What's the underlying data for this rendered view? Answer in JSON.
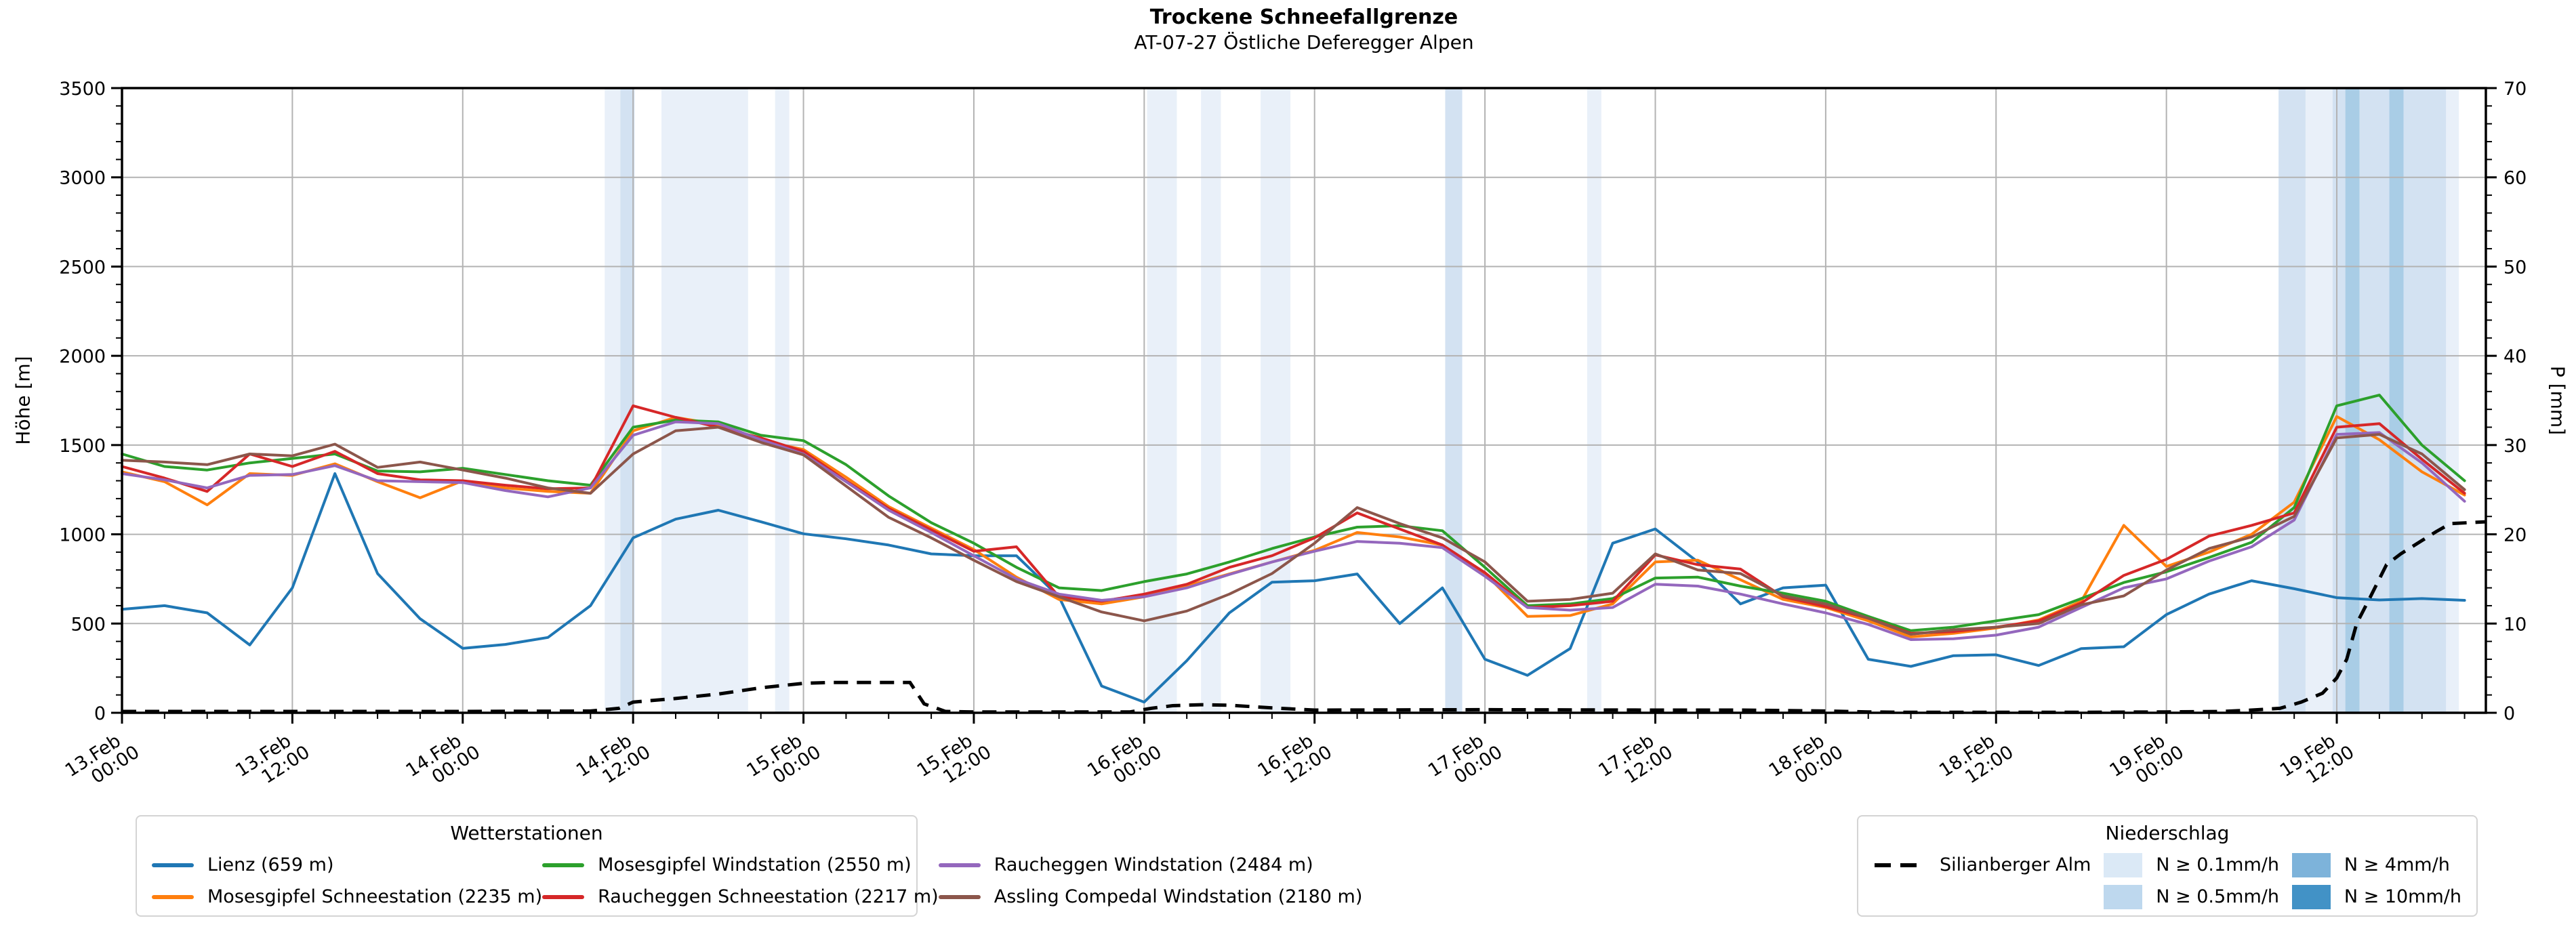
{
  "title": "Trockene Schneefallgrenze",
  "subtitle": "AT-07-27 Östliche Deferegger Alpen",
  "axes": {
    "y_left_label": "Höhe [m]",
    "y_right_label": "P [mm]",
    "y_left": {
      "min": 0,
      "max": 3500,
      "major": 500,
      "minor": 100,
      "ticks": [
        0,
        500,
        1000,
        1500,
        2000,
        2500,
        3000,
        3500
      ]
    },
    "y_right": {
      "min": 0,
      "max": 70,
      "major": 10,
      "minor": 2,
      "ticks": [
        0,
        10,
        20,
        30,
        40,
        50,
        60,
        70
      ]
    },
    "x_end_hours": 166.5,
    "x_major_hours": 12,
    "x_minor_hours": 3,
    "x_ticklabels": [
      {
        "t": 0,
        "day": "13.Feb",
        "time": "00:00"
      },
      {
        "t": 12,
        "day": "13.Feb",
        "time": "12:00"
      },
      {
        "t": 24,
        "day": "14.Feb",
        "time": "00:00"
      },
      {
        "t": 36,
        "day": "14.Feb",
        "time": "12:00"
      },
      {
        "t": 48,
        "day": "15.Feb",
        "time": "00:00"
      },
      {
        "t": 60,
        "day": "15.Feb",
        "time": "12:00"
      },
      {
        "t": 72,
        "day": "16.Feb",
        "time": "00:00"
      },
      {
        "t": 84,
        "day": "16.Feb",
        "time": "12:00"
      },
      {
        "t": 96,
        "day": "17.Feb",
        "time": "00:00"
      },
      {
        "t": 108,
        "day": "17.Feb",
        "time": "12:00"
      },
      {
        "t": 120,
        "day": "18.Feb",
        "time": "00:00"
      },
      {
        "t": 132,
        "day": "18.Feb",
        "time": "12:00"
      },
      {
        "t": 144,
        "day": "19.Feb",
        "time": "00:00"
      },
      {
        "t": 156,
        "day": "19.Feb",
        "time": "12:00"
      }
    ]
  },
  "colors": {
    "grid": "#b3b3b3",
    "axis": "#000000",
    "band_chart": {
      "0.1": "#e9f0f9",
      "0.5": "#d3e2f2",
      "4": "#a9cde6",
      "10": "#6fa8d2"
    },
    "band_legend": {
      "0.1": "#dbe9f6",
      "0.5": "#bed8ee",
      "4": "#7db3da",
      "10": "#4292c6"
    }
  },
  "legend_left": {
    "title": "Wetterstationen",
    "entries": [
      {
        "label": "Lienz (659 m)",
        "color": "#1f77b4"
      },
      {
        "label": "Mosesgipfel Schneestation (2235 m)",
        "color": "#ff7f0e"
      },
      {
        "label": "Mosesgipfel Windstation (2550 m)",
        "color": "#2ca02c"
      },
      {
        "label": "Raucheggen Schneestation (2217 m)",
        "color": "#d62728"
      },
      {
        "label": "Raucheggen Windstation (2484 m)",
        "color": "#9467bd"
      },
      {
        "label": "Assling Compedal Windstation (2180 m)",
        "color": "#8c564b"
      }
    ]
  },
  "legend_right": {
    "title": "Niederschlag",
    "dashed_entry": {
      "label": "Silianberger Alm",
      "color": "#000000"
    },
    "levels": [
      {
        "label": "N ≥ 0.1mm/h",
        "level": "0.1"
      },
      {
        "label": "N ≥ 0.5mm/h",
        "level": "0.5"
      },
      {
        "label": "N ≥ 4mm/h",
        "level": "4"
      },
      {
        "label": "N ≥ 10mm/h",
        "level": "10"
      }
    ]
  },
  "chart_data": {
    "type": "line",
    "title": "Trockene Schneefallgrenze",
    "subtitle": "AT-07-27 Östliche Deferegger Alpen",
    "ylabel": "Höhe [m]",
    "ylabel_right": "P [mm]",
    "ylim": [
      0,
      3500
    ],
    "ylim_right": [
      0,
      70
    ],
    "x_start": "13.Feb 00:00",
    "x_hours": [
      0,
      3,
      6,
      9,
      12,
      15,
      18,
      21,
      24,
      27,
      30,
      33,
      36,
      39,
      42,
      45,
      48,
      51,
      54,
      57,
      60,
      63,
      66,
      69,
      72,
      75,
      78,
      81,
      84,
      87,
      90,
      93,
      96,
      99,
      102,
      105,
      108,
      111,
      114,
      117,
      120,
      123,
      126,
      129,
      132,
      135,
      138,
      141,
      144,
      147,
      150,
      153,
      156,
      159,
      162,
      165
    ],
    "series": [
      {
        "name": "Lienz (659 m)",
        "key": "lienz",
        "color": "#1f77b4",
        "values": [
          580,
          600,
          560,
          380,
          700,
          1340,
          780,
          527,
          361,
          383,
          422,
          600,
          980,
          1085,
          1135,
          1070,
          1003,
          975,
          940,
          890,
          880,
          880,
          650,
          150,
          60,
          292,
          560,
          732,
          740,
          778,
          500,
          700,
          300,
          210,
          360,
          950,
          1030,
          845,
          610,
          700,
          715,
          300,
          260,
          320,
          325,
          265,
          360,
          370,
          550,
          665,
          740,
          695,
          645,
          632,
          640,
          630
        ]
      },
      {
        "name": "Mosesgipfel Schneestation (2235 m)",
        "key": "mosesgipfel_schnee",
        "color": "#ff7f0e",
        "values": [
          1350,
          1295,
          1165,
          1340,
          1330,
          1395,
          1295,
          1205,
          1300,
          1260,
          1240,
          1230,
          1580,
          1655,
          1615,
          1525,
          1475,
          1320,
          1155,
          1035,
          915,
          760,
          635,
          610,
          650,
          710,
          778,
          845,
          910,
          1010,
          985,
          940,
          780,
          540,
          545,
          610,
          845,
          855,
          745,
          635,
          590,
          515,
          425,
          445,
          475,
          520,
          625,
          1050,
          820,
          900,
          1000,
          1180,
          1660,
          1530,
          1350,
          1220
        ]
      },
      {
        "name": "Mosesgipfel Windstation (2550 m)",
        "key": "mosesgipfel_wind",
        "color": "#2ca02c",
        "values": [
          1450,
          1380,
          1360,
          1400,
          1425,
          1450,
          1355,
          1350,
          1370,
          1335,
          1300,
          1275,
          1600,
          1640,
          1630,
          1555,
          1525,
          1390,
          1215,
          1065,
          950,
          815,
          700,
          685,
          735,
          778,
          845,
          920,
          985,
          1040,
          1048,
          1020,
          815,
          600,
          610,
          640,
          755,
          760,
          710,
          670,
          625,
          540,
          460,
          480,
          515,
          550,
          640,
          730,
          790,
          870,
          955,
          1150,
          1720,
          1780,
          1500,
          1300
        ]
      },
      {
        "name": "Raucheggen Schneestation (2217 m)",
        "key": "raucheggen_schnee",
        "color": "#d62728",
        "values": [
          1380,
          1315,
          1240,
          1450,
          1380,
          1465,
          1340,
          1305,
          1300,
          1275,
          1255,
          1260,
          1720,
          1655,
          1600,
          1540,
          1465,
          1300,
          1145,
          1025,
          905,
          930,
          650,
          625,
          665,
          720,
          815,
          880,
          980,
          1120,
          1030,
          940,
          785,
          590,
          600,
          625,
          885,
          830,
          805,
          650,
          595,
          530,
          445,
          455,
          480,
          515,
          615,
          770,
          860,
          990,
          1050,
          1120,
          1600,
          1620,
          1420,
          1230
        ]
      },
      {
        "name": "Raucheggen Windstation (2484 m)",
        "key": "raucheggen_wind",
        "color": "#9467bd",
        "values": [
          1340,
          1305,
          1260,
          1330,
          1335,
          1385,
          1300,
          1295,
          1290,
          1245,
          1210,
          1260,
          1555,
          1630,
          1620,
          1530,
          1450,
          1295,
          1135,
          1010,
          880,
          750,
          665,
          630,
          650,
          700,
          775,
          845,
          905,
          960,
          950,
          925,
          765,
          590,
          575,
          590,
          720,
          710,
          665,
          610,
          560,
          495,
          410,
          415,
          435,
          480,
          590,
          700,
          750,
          850,
          930,
          1080,
          1560,
          1570,
          1400,
          1185
        ]
      },
      {
        "name": "Assling Compedal Windstation (2180 m)",
        "key": "assling",
        "color": "#8c564b",
        "values": [
          1415,
          1405,
          1390,
          1450,
          1440,
          1505,
          1375,
          1405,
          1360,
          1315,
          1260,
          1230,
          1450,
          1580,
          1600,
          1515,
          1445,
          1270,
          1095,
          980,
          855,
          735,
          650,
          565,
          515,
          570,
          665,
          780,
          950,
          1150,
          1060,
          980,
          845,
          625,
          635,
          670,
          890,
          800,
          780,
          655,
          610,
          530,
          440,
          465,
          480,
          500,
          605,
          655,
          800,
          920,
          985,
          1100,
          1540,
          1560,
          1450,
          1250
        ]
      }
    ],
    "precip_line": {
      "name": "Silianberger Alm",
      "color": "#000000",
      "style": "dashed",
      "axis": "right",
      "x_hours": [
        0,
        24,
        33,
        35,
        36,
        39,
        42,
        45,
        48,
        50,
        54,
        55.5,
        56.5,
        58,
        60,
        71,
        72.5,
        74,
        76,
        78,
        79.5,
        81,
        84,
        96,
        108,
        114,
        117,
        120,
        123,
        126,
        132,
        138,
        144,
        148,
        150,
        152,
        153.5,
        155,
        156,
        156.7,
        157.4,
        158.4,
        159.5,
        160.5,
        162,
        163,
        164,
        166.5
      ],
      "values_mm": [
        0.15,
        0.15,
        0.2,
        0.5,
        1.2,
        1.6,
        2.1,
        2.8,
        3.3,
        3.4,
        3.4,
        3.4,
        1.0,
        0.15,
        0.1,
        0.1,
        0.5,
        0.8,
        0.9,
        0.85,
        0.7,
        0.55,
        0.3,
        0.35,
        0.3,
        0.3,
        0.25,
        0.2,
        0.1,
        0.05,
        0.05,
        0.05,
        0.1,
        0.15,
        0.3,
        0.5,
        1.2,
        2.2,
        3.9,
        6.0,
        10.0,
        13.1,
        16.6,
        17.8,
        19.3,
        20.3,
        21.2,
        21.4
      ]
    },
    "precip_bands": [
      {
        "start": 34.0,
        "end": 35.1,
        "level": "0.1"
      },
      {
        "start": 35.1,
        "end": 36.1,
        "level": "0.5"
      },
      {
        "start": 38.0,
        "end": 44.1,
        "level": "0.1"
      },
      {
        "start": 46.0,
        "end": 47.0,
        "level": "0.1"
      },
      {
        "start": 72.2,
        "end": 74.3,
        "level": "0.1"
      },
      {
        "start": 76.0,
        "end": 77.4,
        "level": "0.1"
      },
      {
        "start": 80.2,
        "end": 82.3,
        "level": "0.1"
      },
      {
        "start": 93.2,
        "end": 94.4,
        "level": "0.5"
      },
      {
        "start": 103.2,
        "end": 104.2,
        "level": "0.1"
      },
      {
        "start": 151.9,
        "end": 153.8,
        "level": "0.5"
      },
      {
        "start": 153.8,
        "end": 155.7,
        "level": "0.1"
      },
      {
        "start": 155.7,
        "end": 156.6,
        "level": "0.5"
      },
      {
        "start": 156.6,
        "end": 157.6,
        "level": "4"
      },
      {
        "start": 157.6,
        "end": 159.7,
        "level": "0.5"
      },
      {
        "start": 159.7,
        "end": 160.7,
        "level": "4"
      },
      {
        "start": 160.7,
        "end": 163.7,
        "level": "0.5"
      },
      {
        "start": 163.7,
        "end": 164.6,
        "level": "0.1"
      }
    ]
  }
}
